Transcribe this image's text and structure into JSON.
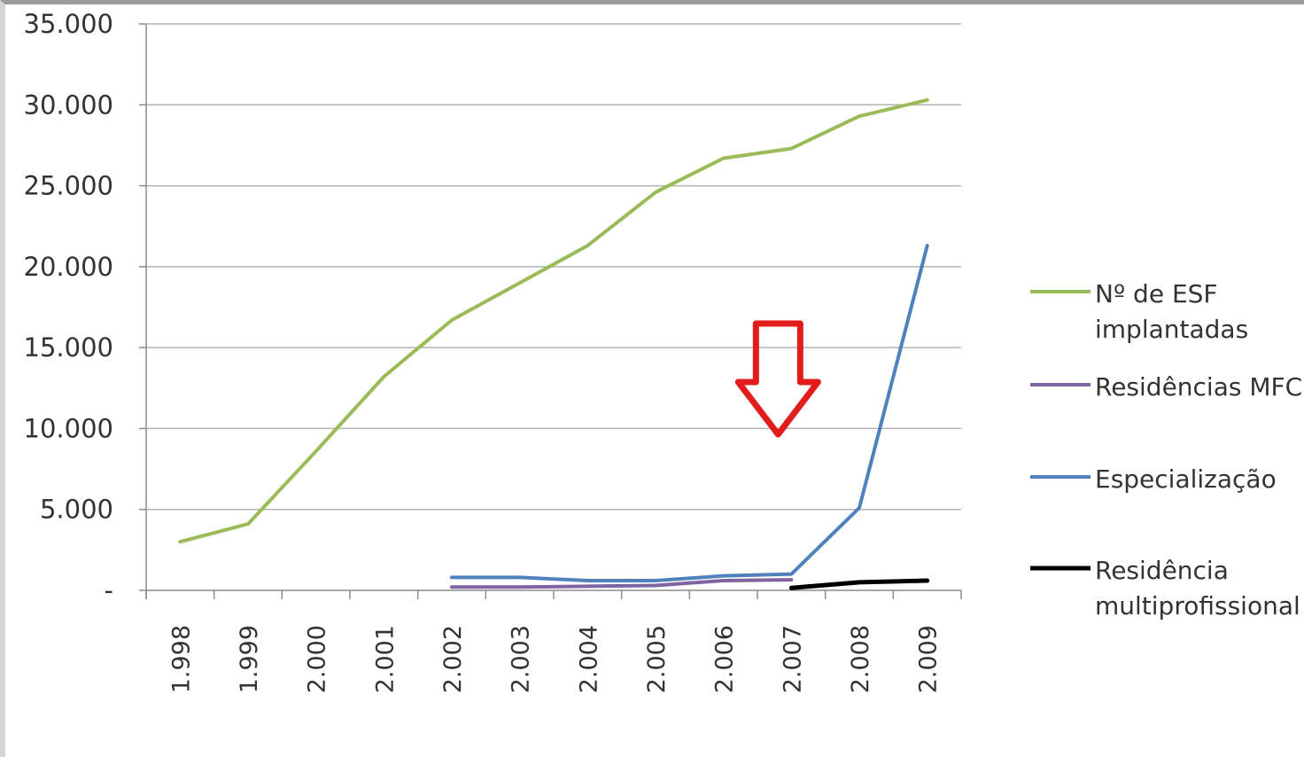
{
  "chart_data": {
    "type": "line",
    "title": "",
    "xlabel": "",
    "ylabel": "",
    "categories": [
      "1.998",
      "1.999",
      "2.000",
      "2.001",
      "2.002",
      "2.003",
      "2.004",
      "2.005",
      "2.006",
      "2.007",
      "2.008",
      "2.009"
    ],
    "y_ticks": [
      "-",
      "5.000",
      "10.000",
      "15.000",
      "20.000",
      "25.000",
      "30.000",
      "35.000"
    ],
    "ylim": [
      0,
      35000
    ],
    "grid": "horizontal",
    "legend_position": "right",
    "series": [
      {
        "name_lines": [
          "Nº de ESF",
          "implantadas"
        ],
        "color": "#9bbb59",
        "values": [
          3000,
          4100,
          8600,
          13200,
          16700,
          19000,
          21300,
          24600,
          26700,
          27300,
          29300,
          30300
        ]
      },
      {
        "name_lines": [
          "Residências MFC"
        ],
        "color": "#8064a2",
        "values": [
          null,
          null,
          null,
          null,
          200,
          200,
          250,
          300,
          600,
          650,
          null,
          null
        ]
      },
      {
        "name_lines": [
          "Especialização"
        ],
        "color": "#4f81bd",
        "values": [
          null,
          null,
          null,
          null,
          800,
          800,
          600,
          600,
          900,
          1000,
          5100,
          21300
        ]
      },
      {
        "name_lines": [
          "Residência",
          "multiprofissional"
        ],
        "color": "#000000",
        "values": [
          null,
          null,
          null,
          null,
          null,
          null,
          null,
          null,
          null,
          150,
          500,
          600
        ]
      }
    ],
    "annotation": {
      "type": "down-arrow",
      "color": "#e21b1b",
      "category_index": 9
    }
  }
}
